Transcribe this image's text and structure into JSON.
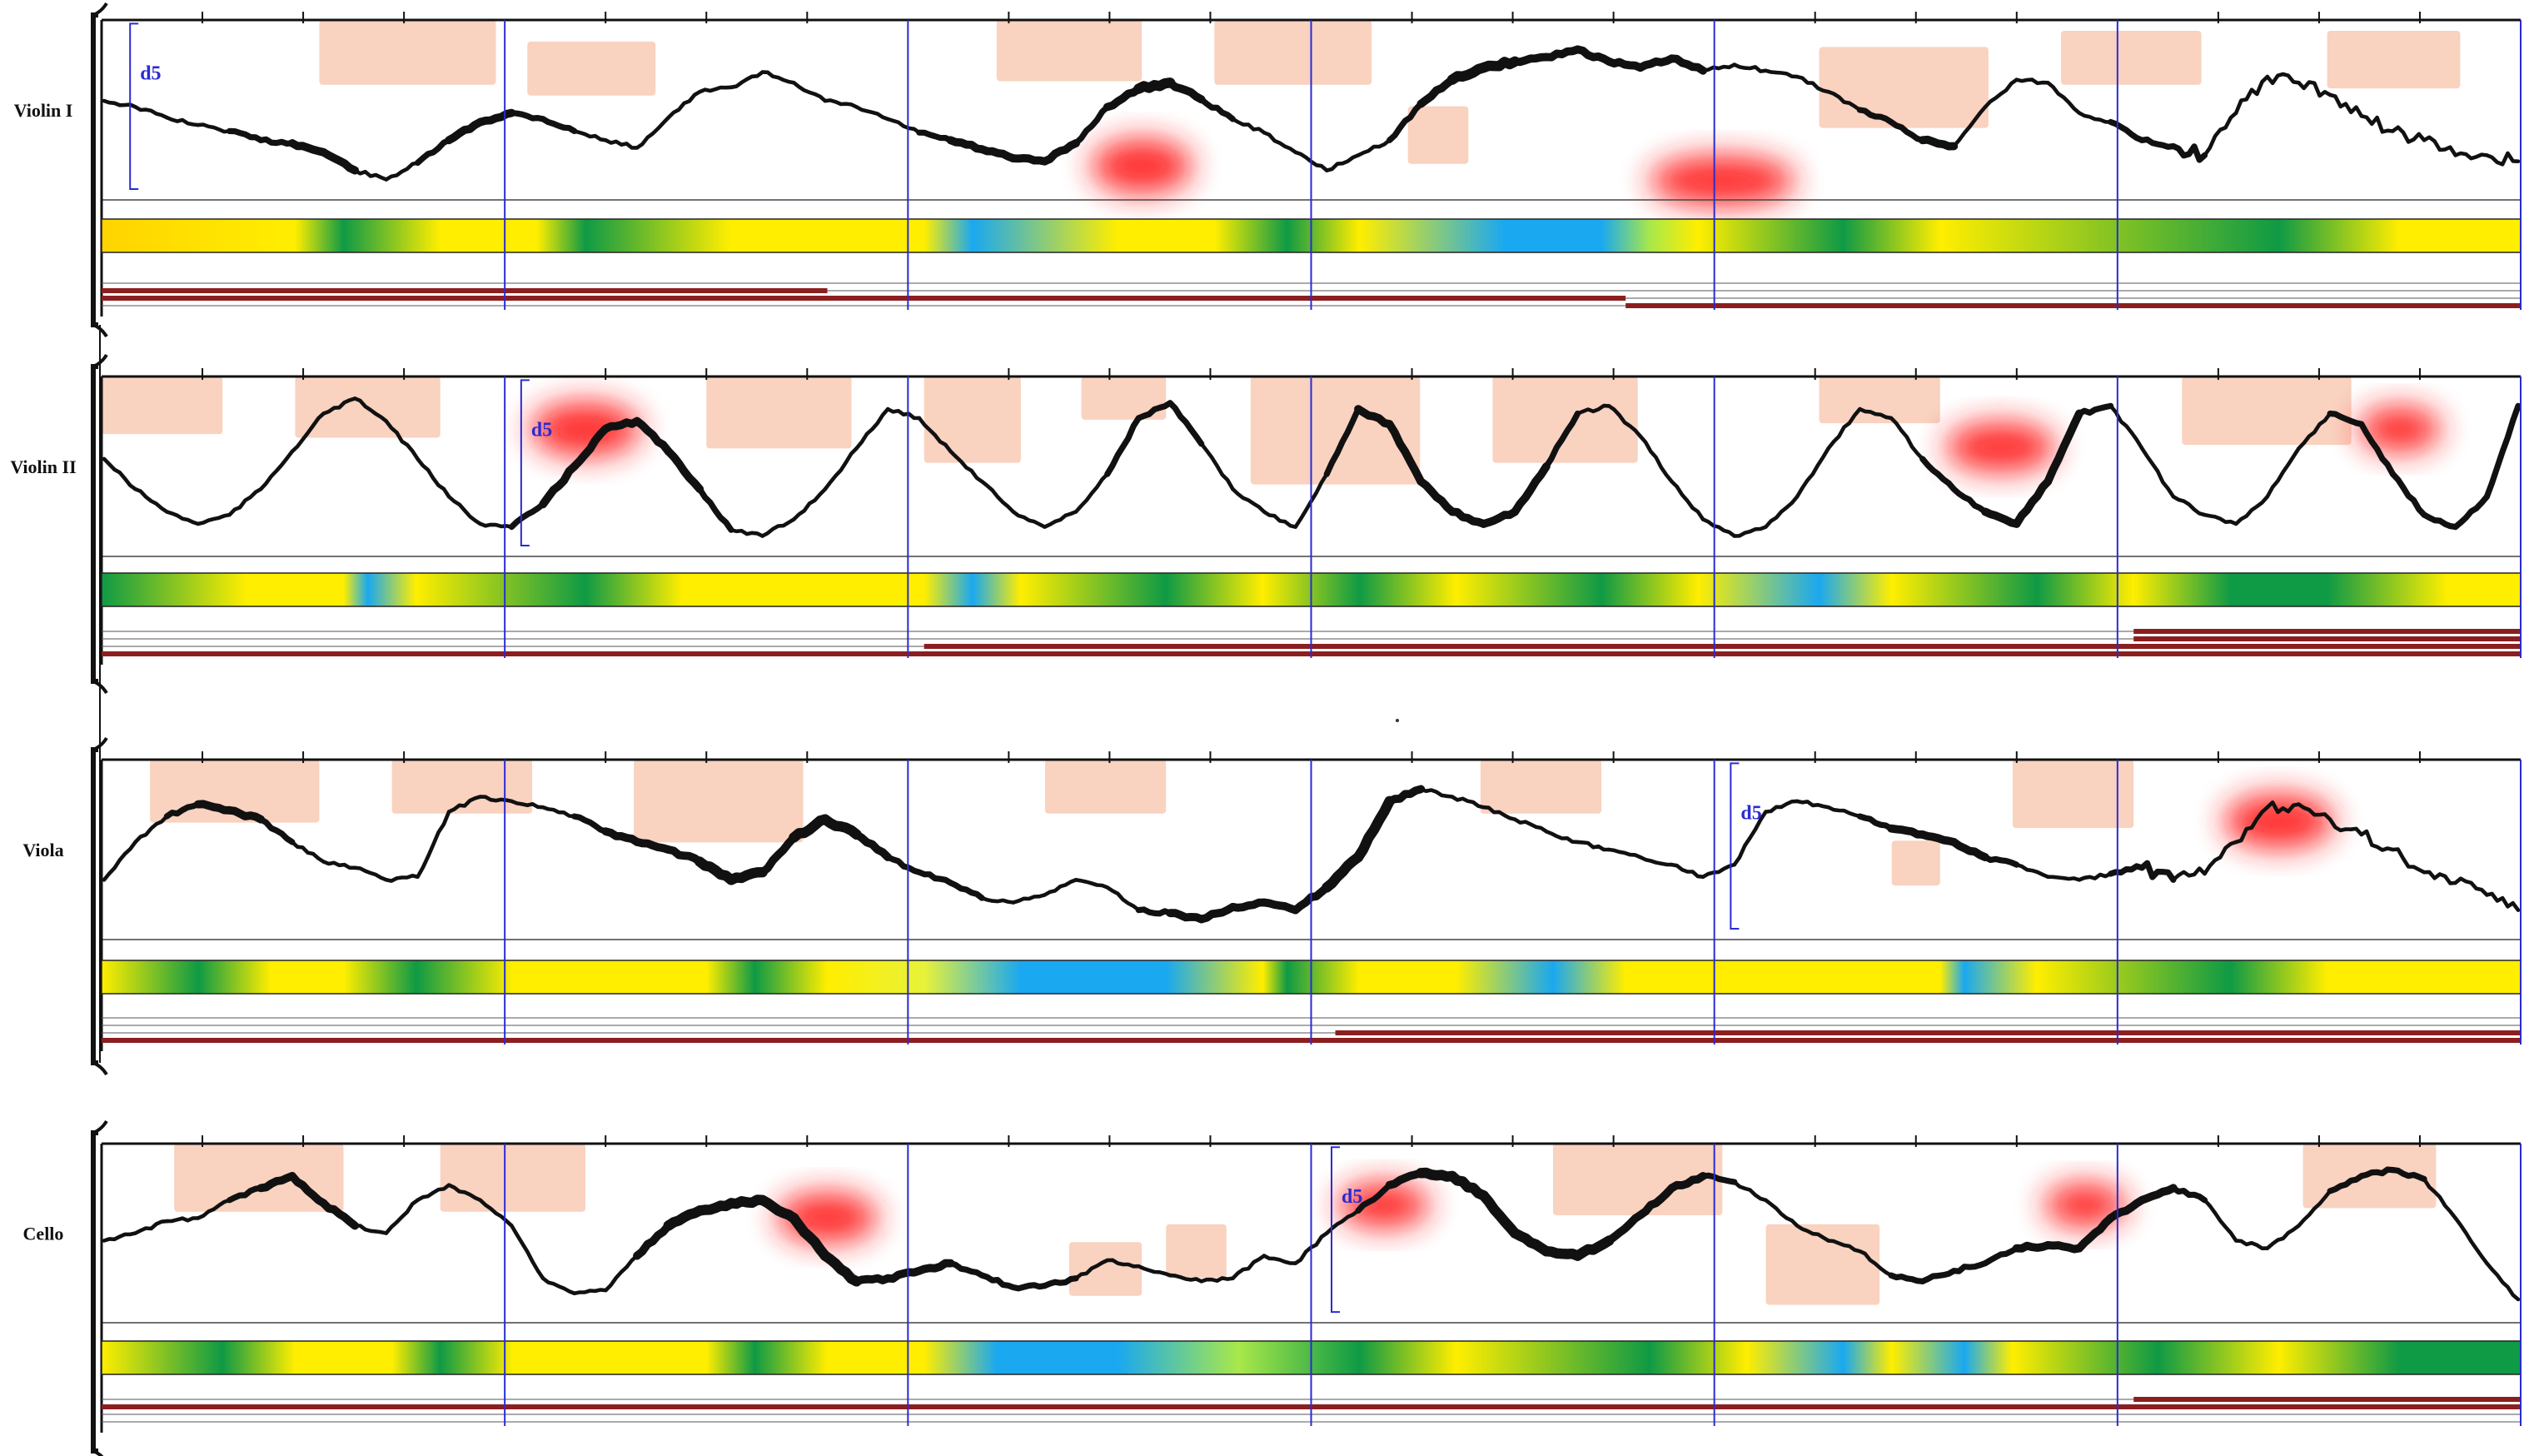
{
  "colors": {
    "barline": "#2a2ad4",
    "interval": "#2a2ad4",
    "contour": "#111111",
    "peach": "#f9d2c0",
    "hotspot": "#ff2020",
    "timeline": "#8b1f1f",
    "band_yellow": "#ffee00",
    "band_green": "#0f9a45",
    "band_blue": "#1aa8f0"
  },
  "measures": 6,
  "parts": [
    {
      "name": "Violin I",
      "interval_labels": [
        {
          "text": "d5",
          "measure": 0.05
        }
      ],
      "contour": [
        0.56,
        0.52,
        0.45,
        0.4,
        0.36,
        0.3,
        0.28,
        0.22,
        0.1,
        0.04,
        0.15,
        0.3,
        0.42,
        0.48,
        0.44,
        0.36,
        0.3,
        0.25,
        0.45,
        0.62,
        0.65,
        0.75,
        0.68,
        0.56,
        0.52,
        0.44,
        0.35,
        0.3,
        0.24,
        0.18,
        0.16,
        0.28,
        0.52,
        0.64,
        0.68,
        0.57,
        0.44,
        0.35,
        0.22,
        0.1,
        0.2,
        0.3,
        0.54,
        0.7,
        0.78,
        0.82,
        0.85,
        0.9,
        0.82,
        0.78,
        0.84,
        0.76,
        0.8,
        0.76,
        0.72,
        0.62,
        0.5,
        0.42,
        0.3,
        0.26,
        0.52,
        0.7,
        0.68,
        0.48,
        0.42,
        0.3,
        0.26,
        0.2,
        0.48,
        0.72,
        0.68,
        0.6,
        0.46,
        0.36,
        0.3,
        0.2,
        0.2,
        0.16
      ],
      "weights": [
        1,
        1,
        1,
        1,
        2,
        2,
        3,
        3,
        1,
        1,
        2,
        3,
        3,
        2,
        2,
        1,
        1,
        1,
        1,
        1,
        1,
        1,
        1,
        1,
        1,
        1,
        2,
        3,
        3,
        3,
        3,
        2,
        3,
        4,
        3,
        2,
        1,
        1,
        1,
        1,
        1,
        2,
        3,
        4,
        4,
        3,
        3,
        3,
        3,
        3,
        3,
        1,
        1,
        1,
        1,
        1,
        2,
        2,
        3,
        1,
        1,
        1,
        1,
        1,
        2,
        2,
        2,
        1,
        1,
        1,
        1,
        1,
        1,
        1,
        1,
        1,
        1,
        1
      ],
      "jagged_after": 0.86,
      "peach": [
        [
          0.09,
          0.0,
          0.163,
          0.36
        ],
        [
          0.176,
          0.12,
          0.229,
          0.42
        ],
        [
          0.37,
          0.0,
          0.43,
          0.34
        ],
        [
          0.46,
          0.0,
          0.525,
          0.36
        ],
        [
          0.54,
          0.48,
          0.565,
          0.8
        ],
        [
          0.71,
          0.15,
          0.78,
          0.6
        ],
        [
          0.81,
          0.06,
          0.868,
          0.36
        ],
        [
          0.92,
          0.06,
          0.975,
          0.38
        ]
      ],
      "hot": [
        [
          0.43,
          0.72,
          110,
          60
        ],
        [
          0.67,
          0.8,
          160,
          55
        ]
      ],
      "bands": [
        [
          "#ffd400",
          0
        ],
        [
          "#ffee00",
          0.08
        ],
        [
          "#0f9a45",
          0.1
        ],
        [
          "#ffee00",
          0.14
        ],
        [
          "#ffee00",
          0.18
        ],
        [
          "#0f9a45",
          0.2
        ],
        [
          "#ffee00",
          0.26
        ],
        [
          "#ffee00",
          0.34
        ],
        [
          "#1aa8f0",
          0.36
        ],
        [
          "#ffee00",
          0.42
        ],
        [
          "#ffee00",
          0.46
        ],
        [
          "#0f9a45",
          0.49
        ],
        [
          "#ffee00",
          0.52
        ],
        [
          "#1aa8f0",
          0.58
        ],
        [
          "#1aa8f0",
          0.62
        ],
        [
          "#a8e84a",
          0.64
        ],
        [
          "#ffee00",
          0.66
        ],
        [
          "#0f9a45",
          0.72
        ],
        [
          "#ffee00",
          0.76
        ],
        [
          "#0f9a45",
          0.9
        ],
        [
          "#ffee00",
          0.95
        ]
      ],
      "timeline_rows": [
        [
          [
            0,
            0.0
          ]
        ],
        [
          [
            0.0,
            0.3
          ]
        ],
        [
          [
            0.3,
            0.63
          ],
          [
            0.0,
            0.3
          ]
        ],
        [
          [
            0.63,
            1.0
          ]
        ]
      ]
    },
    {
      "name": "Violin II",
      "interval_labels": [
        {
          "text": "d5",
          "measure": 1.02
        }
      ],
      "contour": [
        0.55,
        0.35,
        0.2,
        0.12,
        0.18,
        0.35,
        0.6,
        0.85,
        0.95,
        0.8,
        0.55,
        0.3,
        0.12,
        0.1,
        0.25,
        0.5,
        0.75,
        0.8,
        0.6,
        0.35,
        0.08,
        0.04,
        0.15,
        0.35,
        0.62,
        0.88,
        0.82,
        0.6,
        0.4,
        0.2,
        0.1,
        0.2,
        0.45,
        0.82,
        0.92,
        0.65,
        0.35,
        0.2,
        0.1,
        0.45,
        0.88,
        0.78,
        0.4,
        0.2,
        0.12,
        0.2,
        0.5,
        0.85,
        0.9,
        0.7,
        0.4,
        0.15,
        0.04,
        0.1,
        0.3,
        0.62,
        0.88,
        0.82,
        0.55,
        0.35,
        0.2,
        0.12,
        0.4,
        0.85,
        0.9,
        0.62,
        0.3,
        0.18,
        0.12,
        0.3,
        0.62,
        0.85,
        0.78,
        0.45,
        0.18,
        0.1,
        0.3,
        0.9
      ],
      "weights": [
        1,
        1,
        1,
        1,
        1,
        1,
        1,
        1,
        1,
        1,
        1,
        1,
        1,
        2,
        3,
        3,
        3,
        3,
        3,
        2,
        1,
        1,
        1,
        1,
        1,
        1,
        1,
        1,
        1,
        1,
        1,
        1,
        2,
        2,
        2,
        1,
        1,
        1,
        1,
        2,
        3,
        3,
        3,
        3,
        3,
        3,
        2,
        1,
        1,
        1,
        1,
        1,
        1,
        1,
        1,
        1,
        1,
        1,
        2,
        2,
        3,
        3,
        3,
        2,
        1,
        1,
        1,
        1,
        1,
        1,
        1,
        2,
        2,
        2,
        2,
        2,
        2,
        2
      ],
      "jagged_after": 1.1,
      "peach": [
        [
          0.0,
          0.0,
          0.05,
          0.32
        ],
        [
          0.08,
          0.0,
          0.14,
          0.34
        ],
        [
          0.25,
          0.0,
          0.31,
          0.4
        ],
        [
          0.34,
          0.0,
          0.38,
          0.48
        ],
        [
          0.405,
          0.0,
          0.44,
          0.24
        ],
        [
          0.475,
          0.0,
          0.545,
          0.6
        ],
        [
          0.575,
          0.0,
          0.635,
          0.48
        ],
        [
          0.71,
          0.0,
          0.76,
          0.26
        ],
        [
          0.86,
          0.0,
          0.93,
          0.38
        ]
      ],
      "hot": [
        [
          0.2,
          0.2,
          120,
          60
        ],
        [
          0.785,
          0.3,
          120,
          55
        ],
        [
          0.95,
          0.2,
          90,
          50
        ]
      ],
      "bands": [
        [
          "#0f9a45",
          0
        ],
        [
          "#ffee00",
          0.06
        ],
        [
          "#ffee00",
          0.1
        ],
        [
          "#1aa8f0",
          0.11
        ],
        [
          "#ffee00",
          0.13
        ],
        [
          "#0f9a45",
          0.2
        ],
        [
          "#ffee00",
          0.24
        ],
        [
          "#ffee00",
          0.34
        ],
        [
          "#1aa8f0",
          0.36
        ],
        [
          "#ffee00",
          0.38
        ],
        [
          "#0f9a45",
          0.44
        ],
        [
          "#ffee00",
          0.48
        ],
        [
          "#0f9a45",
          0.52
        ],
        [
          "#ffee00",
          0.56
        ],
        [
          "#0f9a45",
          0.62
        ],
        [
          "#ffee00",
          0.66
        ],
        [
          "#1aa8f0",
          0.71
        ],
        [
          "#ffee00",
          0.74
        ],
        [
          "#0f9a45",
          0.8
        ],
        [
          "#ffee00",
          0.84
        ],
        [
          "#0f9a45",
          0.88
        ],
        [
          "#0f9a45",
          0.92
        ],
        [
          "#ffee00",
          0.97
        ]
      ],
      "timeline_rows": [
        [
          [
            0.84,
            1.0
          ]
        ],
        [
          [
            0.84,
            1.0
          ]
        ],
        [
          [
            0.34,
            1.0
          ]
        ],
        [
          [
            0.0,
            1.0
          ]
        ]
      ]
    },
    {
      "name": "Viola",
      "interval_labels": [
        {
          "text": "d5",
          "measure": 4.02
        }
      ],
      "contour": [
        0.3,
        0.55,
        0.72,
        0.8,
        0.76,
        0.7,
        0.55,
        0.42,
        0.38,
        0.3,
        0.32,
        0.75,
        0.85,
        0.82,
        0.78,
        0.72,
        0.62,
        0.55,
        0.5,
        0.42,
        0.3,
        0.35,
        0.58,
        0.7,
        0.6,
        0.45,
        0.35,
        0.28,
        0.18,
        0.15,
        0.2,
        0.3,
        0.25,
        0.1,
        0.08,
        0.04,
        0.12,
        0.15,
        0.1,
        0.25,
        0.45,
        0.82,
        0.9,
        0.85,
        0.78,
        0.7,
        0.62,
        0.55,
        0.5,
        0.45,
        0.4,
        0.32,
        0.4,
        0.75,
        0.82,
        0.78,
        0.72,
        0.64,
        0.6,
        0.55,
        0.45,
        0.4,
        0.32,
        0.3,
        0.34,
        0.38,
        0.3,
        0.34,
        0.55,
        0.78,
        0.8,
        0.7,
        0.6,
        0.5,
        0.35,
        0.28,
        0.2,
        0.1
      ],
      "weights": [
        1,
        1,
        2,
        3,
        3,
        2,
        1,
        1,
        1,
        1,
        1,
        1,
        1,
        1,
        1,
        2,
        3,
        3,
        3,
        4,
        4,
        3,
        4,
        4,
        3,
        2,
        2,
        2,
        1,
        1,
        1,
        1,
        1,
        2,
        3,
        3,
        3,
        3,
        3,
        4,
        4,
        3,
        1,
        1,
        1,
        1,
        1,
        1,
        1,
        1,
        1,
        1,
        1,
        1,
        1,
        1,
        2,
        3,
        3,
        3,
        2,
        1,
        1,
        1,
        2,
        2,
        1,
        1,
        1,
        1,
        1,
        1,
        1,
        1,
        1,
        1,
        1,
        1
      ],
      "jagged_after": 0.84,
      "peach": [
        [
          0.02,
          0.0,
          0.09,
          0.35
        ],
        [
          0.12,
          0.0,
          0.178,
          0.3
        ],
        [
          0.22,
          0.0,
          0.29,
          0.46
        ],
        [
          0.39,
          0.0,
          0.44,
          0.3
        ],
        [
          0.57,
          0.0,
          0.62,
          0.3
        ],
        [
          0.74,
          0.45,
          0.76,
          0.7
        ],
        [
          0.79,
          0.0,
          0.84,
          0.38
        ]
      ],
      "hot": [
        [
          0.9,
          0.25,
          120,
          60
        ]
      ],
      "bands": [
        [
          "#ffee00",
          0
        ],
        [
          "#0f9a45",
          0.04
        ],
        [
          "#ffee00",
          0.07
        ],
        [
          "#ffee00",
          0.1
        ],
        [
          "#0f9a45",
          0.13
        ],
        [
          "#ffee00",
          0.17
        ],
        [
          "#ffee00",
          0.25
        ],
        [
          "#0f9a45",
          0.27
        ],
        [
          "#ffee00",
          0.3
        ],
        [
          "#e8f23a",
          0.34
        ],
        [
          "#1aa8f0",
          0.38
        ],
        [
          "#1aa8f0",
          0.44
        ],
        [
          "#ffee00",
          0.48
        ],
        [
          "#0f9a45",
          0.49
        ],
        [
          "#ffee00",
          0.52
        ],
        [
          "#ffee00",
          0.56
        ],
        [
          "#1aa8f0",
          0.6
        ],
        [
          "#ffee00",
          0.63
        ],
        [
          "#ffee00",
          0.76
        ],
        [
          "#1aa8f0",
          0.77
        ],
        [
          "#ffee00",
          0.8
        ],
        [
          "#0f9a45",
          0.88
        ],
        [
          "#ffee00",
          0.92
        ]
      ],
      "timeline_rows": [
        [
          [
            0,
            0.0
          ]
        ],
        [
          [
            0,
            0.0
          ]
        ],
        [
          [
            0.51,
            1.0
          ]
        ],
        [
          [
            0.0,
            1.0
          ]
        ]
      ]
    },
    {
      "name": "Cello",
      "interval_labels": [
        {
          "text": "d5",
          "measure": 3.03
        }
      ],
      "contour": [
        0.45,
        0.5,
        0.58,
        0.6,
        0.72,
        0.8,
        0.88,
        0.7,
        0.55,
        0.5,
        0.72,
        0.82,
        0.72,
        0.55,
        0.2,
        0.1,
        0.12,
        0.35,
        0.55,
        0.65,
        0.7,
        0.72,
        0.6,
        0.35,
        0.18,
        0.2,
        0.25,
        0.3,
        0.22,
        0.14,
        0.15,
        0.2,
        0.32,
        0.28,
        0.22,
        0.18,
        0.2,
        0.35,
        0.3,
        0.5,
        0.65,
        0.82,
        0.9,
        0.88,
        0.75,
        0.5,
        0.38,
        0.35,
        0.45,
        0.62,
        0.8,
        0.88,
        0.84,
        0.72,
        0.55,
        0.45,
        0.38,
        0.22,
        0.18,
        0.25,
        0.3,
        0.4,
        0.42,
        0.4,
        0.6,
        0.72,
        0.8,
        0.72,
        0.45,
        0.4,
        0.55,
        0.78,
        0.88,
        0.92,
        0.86,
        0.6,
        0.3,
        0.06
      ],
      "weights": [
        1,
        1,
        1,
        1,
        2,
        3,
        3,
        3,
        1,
        1,
        1,
        1,
        1,
        1,
        1,
        1,
        1,
        3,
        4,
        4,
        4,
        4,
        4,
        4,
        3,
        3,
        3,
        2,
        2,
        2,
        2,
        1,
        1,
        1,
        1,
        1,
        1,
        1,
        1,
        1,
        2,
        3,
        4,
        4,
        4,
        4,
        4,
        4,
        3,
        3,
        3,
        2,
        1,
        1,
        1,
        1,
        1,
        2,
        2,
        2,
        2,
        3,
        3,
        3,
        3,
        3,
        2,
        1,
        1,
        1,
        1,
        2,
        2,
        2,
        1,
        1,
        1,
        1
      ],
      "jagged_after": 1.1,
      "peach": [
        [
          0.03,
          0.0,
          0.1,
          0.38
        ],
        [
          0.14,
          0.0,
          0.2,
          0.38
        ],
        [
          0.4,
          0.55,
          0.43,
          0.85
        ],
        [
          0.44,
          0.45,
          0.465,
          0.75
        ],
        [
          0.6,
          0.0,
          0.67,
          0.4
        ],
        [
          0.688,
          0.45,
          0.735,
          0.9
        ],
        [
          0.91,
          0.0,
          0.965,
          0.36
        ]
      ],
      "hot": [
        [
          0.3,
          0.32,
          110,
          55
        ],
        [
          0.53,
          0.25,
          100,
          50
        ],
        [
          0.82,
          0.25,
          90,
          48
        ]
      ],
      "bands": [
        [
          "#ffee00",
          0
        ],
        [
          "#0f9a45",
          0.05
        ],
        [
          "#ffee00",
          0.08
        ],
        [
          "#ffee00",
          0.12
        ],
        [
          "#0f9a45",
          0.14
        ],
        [
          "#ffee00",
          0.17
        ],
        [
          "#ffee00",
          0.25
        ],
        [
          "#0f9a45",
          0.27
        ],
        [
          "#ffee00",
          0.3
        ],
        [
          "#ffee00",
          0.34
        ],
        [
          "#1aa8f0",
          0.37
        ],
        [
          "#1aa8f0",
          0.42
        ],
        [
          "#a8e84a",
          0.47
        ],
        [
          "#0f9a45",
          0.52
        ],
        [
          "#ffee00",
          0.56
        ],
        [
          "#0f9a45",
          0.64
        ],
        [
          "#ffee00",
          0.68
        ],
        [
          "#1aa8f0",
          0.72
        ],
        [
          "#ffee00",
          0.74
        ],
        [
          "#1aa8f0",
          0.77
        ],
        [
          "#ffee00",
          0.79
        ],
        [
          "#0f9a45",
          0.85
        ],
        [
          "#ffee00",
          0.9
        ],
        [
          "#0f9a45",
          0.95
        ]
      ],
      "timeline_rows": [
        [
          [
            0.84,
            1.0
          ]
        ],
        [
          [
            0.0,
            1.0
          ]
        ],
        [
          [
            0,
            0.0
          ]
        ],
        [
          [
            0,
            0.0
          ]
        ]
      ]
    }
  ]
}
